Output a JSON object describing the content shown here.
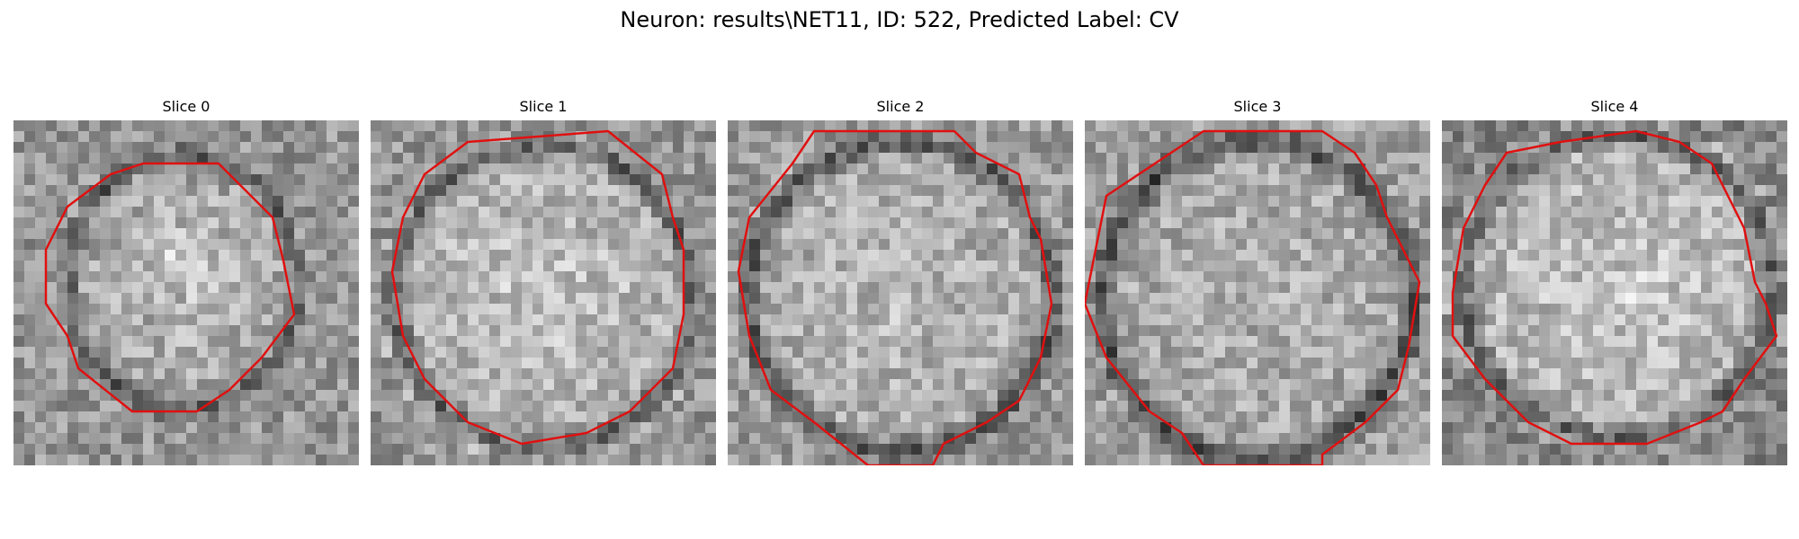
{
  "figure": {
    "title": "Neuron: results\\NET11, ID: 522, Predicted Label: CV"
  },
  "contour_color": "#e01010",
  "slices": [
    {
      "label": "Slice 0"
    },
    {
      "label": "Slice 1"
    },
    {
      "label": "Slice 2"
    },
    {
      "label": "Slice 3"
    },
    {
      "label": "Slice 4"
    }
  ]
}
